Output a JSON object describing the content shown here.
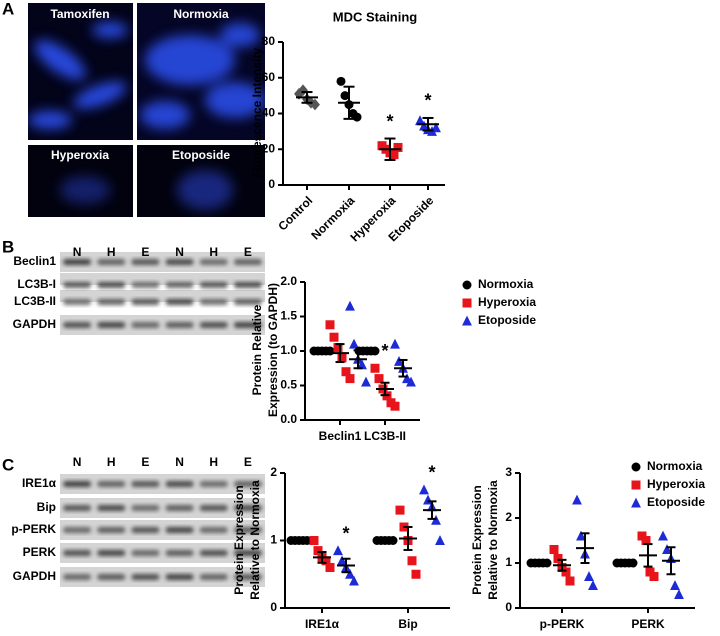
{
  "panels": [
    "A",
    "B",
    "C"
  ],
  "image_labels": [
    "Tamoxifen",
    "Normoxia",
    "Hyperoxia",
    "Etoposide"
  ],
  "blots": [
    {
      "lanes": [
        "N",
        "H",
        "E",
        "N",
        "H",
        "E"
      ],
      "rows": [
        "Beclin1",
        "LC3B-I",
        "LC3B-II",
        "GAPDH"
      ]
    },
    {
      "lanes": [
        "N",
        "H",
        "E",
        "N",
        "H",
        "E"
      ],
      "rows": [
        "IRE1α",
        "Bip",
        "p-PERK",
        "PERK",
        "GAPDH"
      ]
    }
  ],
  "chart_data": [
    {
      "type": "scatter",
      "title": "MDC Staining",
      "ylabel": [
        "Fluorescence Intensity"
      ],
      "categories": [
        "Control",
        "Normoxia",
        "Hyperoxia",
        "Etoposide"
      ],
      "colors": [
        "#555555",
        "#000000",
        "#e8141c",
        "#1c2bd6"
      ],
      "markers": [
        "diamond",
        "circle",
        "square",
        "triangle"
      ],
      "points": [
        [
          51,
          53,
          48,
          46,
          45
        ],
        [
          58,
          50,
          45,
          40,
          38
        ],
        [
          22,
          20,
          18,
          17,
          21
        ],
        [
          36,
          33,
          31,
          30,
          32
        ]
      ],
      "means": [
        49,
        46,
        20,
        34
      ],
      "errors": [
        3,
        9,
        6,
        3.5
      ],
      "annotations": [
        {
          "text": "*",
          "category": "Hyperoxia"
        },
        {
          "text": "*",
          "category": "Etoposide"
        }
      ],
      "ylim": [
        0,
        80
      ],
      "yticks": [
        0,
        20,
        40,
        60,
        80
      ]
    },
    {
      "type": "scatter",
      "ylabel": [
        "Protein Relative",
        "Expression (to GAPDH)"
      ],
      "categories": [
        "Beclin1",
        "LC3B-II"
      ],
      "series": [
        {
          "name": "Normoxia",
          "color": "#000000",
          "marker": "circle",
          "values": [
            [
              1,
              1,
              1,
              1,
              1
            ],
            [
              1,
              1,
              1,
              1,
              1
            ]
          ],
          "means": [
            1,
            1
          ],
          "errors": [
            0,
            0
          ]
        },
        {
          "name": "Hyperoxia",
          "color": "#e8141c",
          "marker": "square",
          "values": [
            [
              1.38,
              1.2,
              1.05,
              0.9,
              0.7,
              0.6
            ],
            [
              0.75,
              0.6,
              0.45,
              0.35,
              0.25,
              0.2
            ]
          ],
          "means": [
            0.97,
            0.45
          ],
          "errors": [
            0.13,
            0.09
          ]
        },
        {
          "name": "Etoposide",
          "color": "#1c2bd6",
          "marker": "triangle",
          "values": [
            [
              1.65,
              1.1,
              0.88,
              0.8,
              0.55
            ],
            [
              1.1,
              0.85,
              0.75,
              0.6,
              0.55
            ]
          ],
          "means": [
            0.88,
            0.75
          ],
          "errors": [
            0.13,
            0.12
          ]
        }
      ],
      "annotations": [
        {
          "text": "*",
          "category": "LC3B-II",
          "series": "Hyperoxia"
        }
      ],
      "ylim": [
        0,
        2
      ],
      "yticks": [
        {
          "value": 0,
          "label": "0.0"
        },
        {
          "value": 0.5,
          "label": "0.5"
        },
        {
          "value": 1,
          "label": "1.0"
        },
        {
          "value": 1.5,
          "label": "1.5"
        },
        {
          "value": 2,
          "label": "2.0"
        }
      ],
      "legend": "right"
    },
    {
      "type": "scatter",
      "ylabel": [
        "Protein Expression",
        "Relative to Normoxia"
      ],
      "categories": [
        "IRE1α",
        "Bip"
      ],
      "series": [
        {
          "name": "Normoxia",
          "color": "#000000",
          "marker": "circle",
          "values": [
            [
              1,
              1,
              1,
              1,
              1
            ],
            [
              1,
              1,
              1,
              1,
              1
            ]
          ],
          "means": [
            1,
            1
          ],
          "errors": [
            0,
            0
          ]
        },
        {
          "name": "Hyperoxia",
          "color": "#e8141c",
          "marker": "square",
          "values": [
            [
              1.0,
              0.85,
              0.75,
              0.7,
              0.6
            ],
            [
              1.45,
              1.2,
              1.0,
              0.7,
              0.5
            ]
          ],
          "means": [
            0.75,
            1.03
          ],
          "errors": [
            0.08,
            0.17
          ]
        },
        {
          "name": "Etoposide",
          "color": "#1c2bd6",
          "marker": "triangle",
          "values": [
            [
              0.85,
              0.7,
              0.6,
              0.5,
              0.4
            ],
            [
              1.75,
              1.6,
              1.5,
              1.3,
              1.0
            ]
          ],
          "means": [
            0.63,
            1.45
          ],
          "errors": [
            0.1,
            0.13
          ]
        }
      ],
      "annotations": [
        {
          "text": "*",
          "category": "IRE1α",
          "series": "Etoposide"
        },
        {
          "text": "*",
          "category": "Bip",
          "series": "Etoposide"
        }
      ],
      "ylim": [
        0,
        2
      ],
      "yticks": [
        0,
        1,
        2
      ]
    },
    {
      "type": "scatter",
      "ylabel": [
        "Protein Expression",
        "Relative to Normoxia"
      ],
      "categories": [
        "p-PERK",
        "PERK"
      ],
      "series": [
        {
          "name": "Normoxia",
          "color": "#000000",
          "marker": "circle",
          "values": [
            [
              1,
              1,
              1,
              1,
              1
            ],
            [
              1,
              1,
              1,
              1,
              1
            ]
          ],
          "means": [
            1,
            1
          ],
          "errors": [
            0,
            0
          ]
        },
        {
          "name": "Hyperoxia",
          "color": "#e8141c",
          "marker": "square",
          "values": [
            [
              1.3,
              1.1,
              0.9,
              0.8,
              0.6
            ],
            [
              1.6,
              1.5,
              0.8,
              0.7
            ]
          ],
          "means": [
            0.95,
            1.17
          ],
          "errors": [
            0.12,
            0.25
          ]
        },
        {
          "name": "Etoposide",
          "color": "#1c2bd6",
          "marker": "triangle",
          "values": [
            [
              2.4,
              1.6,
              1.2,
              0.7,
              0.5
            ],
            [
              1.6,
              1.3,
              1.1,
              0.5,
              0.3
            ]
          ],
          "means": [
            1.33,
            1.05
          ],
          "errors": [
            0.33,
            0.3
          ]
        }
      ],
      "ylim": [
        0,
        3
      ],
      "yticks": [
        0,
        1,
        2,
        3
      ],
      "legend": "right"
    }
  ]
}
